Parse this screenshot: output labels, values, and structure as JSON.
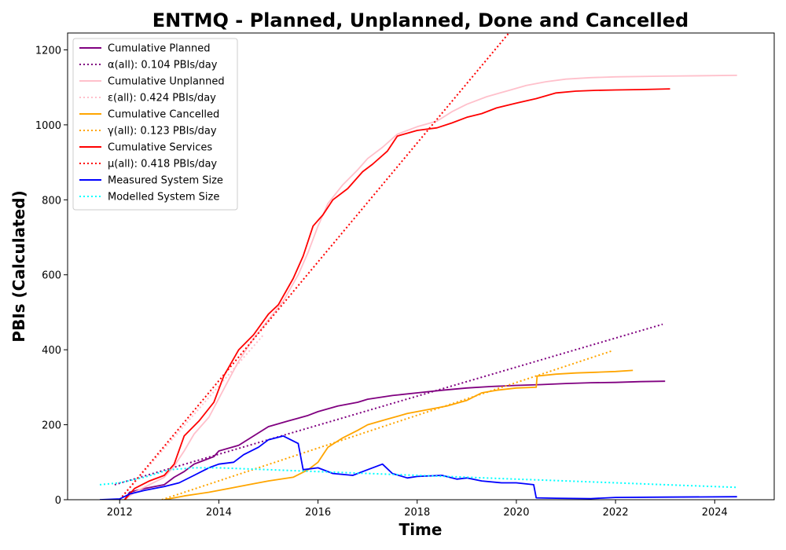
{
  "chart_data": {
    "type": "line",
    "title": "ENTMQ - Planned, Unplanned, Done  and Cancelled",
    "xlabel": "Time",
    "ylabel": "PBIs (Calculated)",
    "xlim": [
      2010.95,
      2025.2
    ],
    "ylim": [
      0,
      1245
    ],
    "x_ticks": [
      2012,
      2014,
      2016,
      2018,
      2020,
      2022,
      2024
    ],
    "y_ticks": [
      0,
      200,
      400,
      600,
      800,
      1000,
      1200
    ],
    "grid": false,
    "legend_position": "top-left",
    "series": [
      {
        "name": "Cumulative Planned",
        "color": "#800080",
        "style": "solid",
        "points": [
          [
            2012.1,
            0
          ],
          [
            2012.2,
            20
          ],
          [
            2012.5,
            30
          ],
          [
            2012.9,
            40
          ],
          [
            2013.1,
            60
          ],
          [
            2013.3,
            75
          ],
          [
            2013.5,
            95
          ],
          [
            2013.9,
            115
          ],
          [
            2014.0,
            130
          ],
          [
            2014.4,
            145
          ],
          [
            2014.7,
            170
          ],
          [
            2015.0,
            195
          ],
          [
            2015.4,
            210
          ],
          [
            2015.8,
            225
          ],
          [
            2016.0,
            235
          ],
          [
            2016.4,
            250
          ],
          [
            2016.8,
            260
          ],
          [
            2017.0,
            268
          ],
          [
            2017.5,
            278
          ],
          [
            2018.0,
            285
          ],
          [
            2018.5,
            292
          ],
          [
            2019.0,
            298
          ],
          [
            2019.5,
            302
          ],
          [
            2020.0,
            305
          ],
          [
            2020.5,
            307
          ],
          [
            2021.0,
            310
          ],
          [
            2021.5,
            312
          ],
          [
            2022.0,
            313
          ],
          [
            2022.5,
            315
          ],
          [
            2023.0,
            316
          ]
        ]
      },
      {
        "name": "α(all): 0.104 PBIs/day",
        "color": "#800080",
        "style": "dotted",
        "points": [
          [
            2011.9,
            40
          ],
          [
            2022.95,
            468
          ]
        ]
      },
      {
        "name": "Cumulative Unplanned",
        "color": "#ffc0cb",
        "style": "solid",
        "points": [
          [
            2012.1,
            0
          ],
          [
            2012.3,
            20
          ],
          [
            2012.6,
            40
          ],
          [
            2012.9,
            60
          ],
          [
            2013.1,
            90
          ],
          [
            2013.3,
            130
          ],
          [
            2013.5,
            175
          ],
          [
            2013.8,
            220
          ],
          [
            2014.0,
            270
          ],
          [
            2014.2,
            320
          ],
          [
            2014.4,
            370
          ],
          [
            2014.7,
            430
          ],
          [
            2015.0,
            480
          ],
          [
            2015.3,
            530
          ],
          [
            2015.6,
            600
          ],
          [
            2015.8,
            660
          ],
          [
            2016.0,
            730
          ],
          [
            2016.2,
            790
          ],
          [
            2016.5,
            840
          ],
          [
            2016.8,
            880
          ],
          [
            2017.0,
            910
          ],
          [
            2017.3,
            940
          ],
          [
            2017.6,
            975
          ],
          [
            2018.0,
            995
          ],
          [
            2018.4,
            1010
          ],
          [
            2018.7,
            1035
          ],
          [
            2019.0,
            1055
          ],
          [
            2019.4,
            1075
          ],
          [
            2019.8,
            1090
          ],
          [
            2020.2,
            1105
          ],
          [
            2020.6,
            1115
          ],
          [
            2021.0,
            1122
          ],
          [
            2021.5,
            1126
          ],
          [
            2022.0,
            1128
          ],
          [
            2023.0,
            1130
          ],
          [
            2024.45,
            1132
          ]
        ]
      },
      {
        "name": "ε(all): 0.424 PBIs/day",
        "color": "#ffc0cb",
        "style": "dotted",
        "points": [
          [
            2012.0,
            0
          ],
          [
            2014.9,
            440
          ]
        ]
      },
      {
        "name": "Cumulative Cancelled",
        "color": "#ffa500",
        "style": "solid",
        "points": [
          [
            2012.9,
            0
          ],
          [
            2013.3,
            10
          ],
          [
            2013.8,
            20
          ],
          [
            2014.2,
            30
          ],
          [
            2014.6,
            40
          ],
          [
            2015.0,
            50
          ],
          [
            2015.5,
            60
          ],
          [
            2015.8,
            80
          ],
          [
            2016.0,
            100
          ],
          [
            2016.2,
            140
          ],
          [
            2016.5,
            165
          ],
          [
            2016.8,
            185
          ],
          [
            2017.0,
            200
          ],
          [
            2017.4,
            215
          ],
          [
            2017.8,
            230
          ],
          [
            2018.2,
            240
          ],
          [
            2018.6,
            250
          ],
          [
            2019.0,
            265
          ],
          [
            2019.3,
            285
          ],
          [
            2019.6,
            292
          ],
          [
            2020.0,
            298
          ],
          [
            2020.4,
            300
          ],
          [
            2020.42,
            330
          ],
          [
            2020.8,
            335
          ],
          [
            2021.2,
            338
          ],
          [
            2021.6,
            340
          ],
          [
            2022.0,
            342
          ],
          [
            2022.35,
            345
          ]
        ]
      },
      {
        "name": "γ(all): 0.123 PBIs/day",
        "color": "#ffa500",
        "style": "dotted",
        "points": [
          [
            2012.85,
            0
          ],
          [
            2021.95,
            398
          ]
        ]
      },
      {
        "name": "Cumulative Services",
        "color": "#ff0000",
        "style": "solid",
        "points": [
          [
            2012.1,
            0
          ],
          [
            2012.3,
            30
          ],
          [
            2012.6,
            50
          ],
          [
            2012.9,
            65
          ],
          [
            2013.1,
            95
          ],
          [
            2013.3,
            170
          ],
          [
            2013.6,
            210
          ],
          [
            2013.9,
            260
          ],
          [
            2014.1,
            330
          ],
          [
            2014.4,
            400
          ],
          [
            2014.7,
            440
          ],
          [
            2015.0,
            495
          ],
          [
            2015.2,
            520
          ],
          [
            2015.5,
            590
          ],
          [
            2015.7,
            650
          ],
          [
            2015.9,
            730
          ],
          [
            2016.1,
            760
          ],
          [
            2016.3,
            800
          ],
          [
            2016.6,
            830
          ],
          [
            2016.9,
            875
          ],
          [
            2017.1,
            895
          ],
          [
            2017.4,
            930
          ],
          [
            2017.6,
            970
          ],
          [
            2018.0,
            985
          ],
          [
            2018.4,
            992
          ],
          [
            2018.7,
            1005
          ],
          [
            2019.0,
            1020
          ],
          [
            2019.3,
            1030
          ],
          [
            2019.6,
            1045
          ],
          [
            2020.0,
            1058
          ],
          [
            2020.4,
            1070
          ],
          [
            2020.8,
            1085
          ],
          [
            2021.2,
            1090
          ],
          [
            2021.6,
            1092
          ],
          [
            2022.0,
            1093
          ],
          [
            2022.5,
            1094
          ],
          [
            2023.1,
            1096
          ]
        ]
      },
      {
        "name": "μ(all): 0.418 PBIs/day",
        "color": "#ff0000",
        "style": "dotted",
        "points": [
          [
            2012.0,
            0
          ],
          [
            2019.85,
            1245
          ]
        ]
      },
      {
        "name": "Measured System Size",
        "color": "#0000ff",
        "style": "solid",
        "points": [
          [
            2011.6,
            0
          ],
          [
            2012.0,
            2
          ],
          [
            2012.2,
            15
          ],
          [
            2012.5,
            25
          ],
          [
            2012.9,
            35
          ],
          [
            2013.2,
            45
          ],
          [
            2013.5,
            65
          ],
          [
            2013.8,
            85
          ],
          [
            2014.0,
            95
          ],
          [
            2014.3,
            100
          ],
          [
            2014.5,
            120
          ],
          [
            2014.8,
            140
          ],
          [
            2015.0,
            160
          ],
          [
            2015.3,
            170
          ],
          [
            2015.6,
            150
          ],
          [
            2015.7,
            80
          ],
          [
            2016.0,
            85
          ],
          [
            2016.3,
            70
          ],
          [
            2016.7,
            65
          ],
          [
            2017.0,
            80
          ],
          [
            2017.3,
            95
          ],
          [
            2017.5,
            70
          ],
          [
            2017.8,
            58
          ],
          [
            2018.0,
            62
          ],
          [
            2018.5,
            65
          ],
          [
            2018.8,
            55
          ],
          [
            2019.0,
            58
          ],
          [
            2019.3,
            50
          ],
          [
            2019.7,
            45
          ],
          [
            2020.0,
            45
          ],
          [
            2020.35,
            40
          ],
          [
            2020.4,
            5
          ],
          [
            2020.8,
            4
          ],
          [
            2021.5,
            3
          ],
          [
            2022.0,
            6
          ],
          [
            2023.0,
            7
          ],
          [
            2024.45,
            8
          ]
        ]
      },
      {
        "name": "Modelled System Size",
        "color": "#00ffff",
        "style": "dotted",
        "points": [
          [
            2011.6,
            40
          ],
          [
            2012.0,
            45
          ],
          [
            2012.5,
            60
          ],
          [
            2013.0,
            80
          ],
          [
            2013.5,
            85
          ],
          [
            2014.0,
            85
          ],
          [
            2015.0,
            80
          ],
          [
            2016.0,
            75
          ],
          [
            2017.0,
            70
          ],
          [
            2018.0,
            65
          ],
          [
            2019.0,
            60
          ],
          [
            2020.0,
            55
          ],
          [
            2021.0,
            50
          ],
          [
            2022.0,
            45
          ],
          [
            2023.0,
            40
          ],
          [
            2024.45,
            33
          ]
        ]
      }
    ]
  }
}
